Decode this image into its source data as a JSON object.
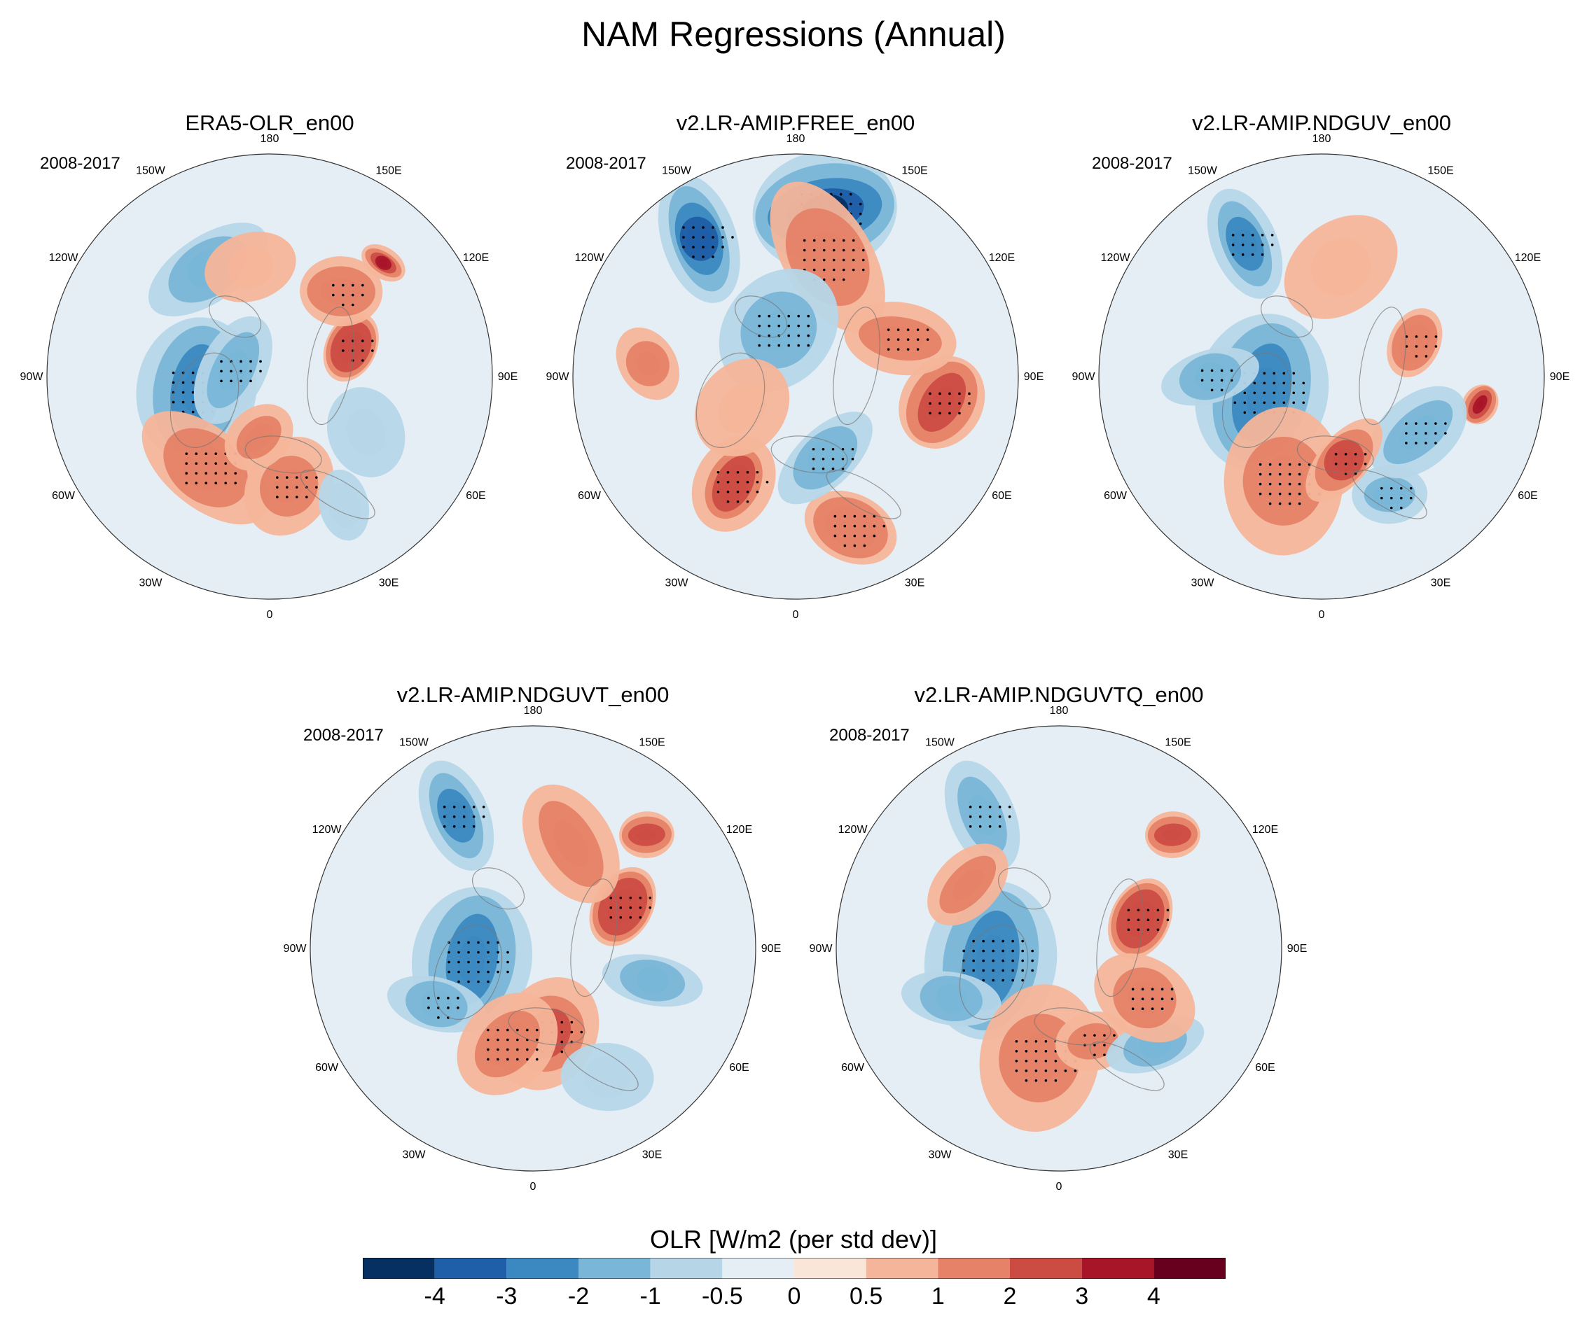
{
  "figure": {
    "title": "NAM Regressions (Annual)"
  },
  "chart_data": {
    "type": "heatmap",
    "projection": "north polar stereographic",
    "variable": "OLR",
    "title": "NAM Regressions (Annual)",
    "colorbar": {
      "title": "OLR [W/m2 (per std dev)]",
      "levels": [
        "-4",
        "-3",
        "-2",
        "-1",
        "-0.5",
        "0",
        "0.5",
        "1",
        "2",
        "3",
        "4"
      ],
      "colors": [
        "#053061",
        "#1f5ea8",
        "#3b89c0",
        "#79b6d8",
        "#b6d6e8",
        "#e4eef4",
        "#fae5d9",
        "#f5b59a",
        "#e58267",
        "#cc4c44",
        "#a81529",
        "#67001f"
      ]
    },
    "longitude_labels": [
      "180",
      "150E",
      "120E",
      "90E",
      "60E",
      "30E",
      "0",
      "30W",
      "60W",
      "90W",
      "120W",
      "150W"
    ],
    "panels": [
      {
        "name": "ERA5-OLR_en00",
        "period": "2008-2017",
        "features": [
          {
            "lon": -80,
            "lat": 60,
            "value": -2.2,
            "size": 1.0,
            "stipple": true
          },
          {
            "lon": -100,
            "lat": 75,
            "value": -1.5,
            "size": 0.7,
            "stipple": true
          },
          {
            "lon": -35,
            "lat": 45,
            "value": 1.8,
            "size": 0.9,
            "stipple": true
          },
          {
            "lon": 10,
            "lat": 45,
            "value": 1.5,
            "size": 0.7,
            "stipple": true
          },
          {
            "lon": -10,
            "lat": 65,
            "value": 1.2,
            "size": 0.6,
            "stipple": false
          },
          {
            "lon": 110,
            "lat": 55,
            "value": 2.0,
            "size": 0.6,
            "stipple": true
          },
          {
            "lon": 140,
            "lat": 45,
            "value": 1.3,
            "size": 0.6,
            "stipple": true
          },
          {
            "lon": 135,
            "lat": 25,
            "value": 3.0,
            "size": 0.3,
            "stipple": false
          },
          {
            "lon": -150,
            "lat": 40,
            "value": -1.2,
            "size": 0.8,
            "stipple": false
          },
          {
            "lon": -170,
            "lat": 45,
            "value": 0.8,
            "size": 0.6,
            "stipple": false
          },
          {
            "lon": 60,
            "lat": 45,
            "value": -0.8,
            "size": 0.7,
            "stipple": false
          },
          {
            "lon": 30,
            "lat": 30,
            "value": -0.7,
            "size": 0.6,
            "stipple": false
          }
        ]
      },
      {
        "name": "v2.LR-AMIP.FREE_en00",
        "period": "2008-2017",
        "features": [
          {
            "lon": 170,
            "lat": 22,
            "value": -4.0,
            "size": 1.0,
            "stipple": true
          },
          {
            "lon": -145,
            "lat": 22,
            "value": -3.0,
            "size": 0.8,
            "stipple": true
          },
          {
            "lon": 165,
            "lat": 40,
            "value": 1.8,
            "size": 1.0,
            "stipple": true
          },
          {
            "lon": -160,
            "lat": 70,
            "value": -1.2,
            "size": 0.9,
            "stipple": true
          },
          {
            "lon": -30,
            "lat": 40,
            "value": 2.5,
            "size": 0.8,
            "stipple": true
          },
          {
            "lon": 20,
            "lat": 25,
            "value": 1.5,
            "size": 0.8,
            "stipple": true
          },
          {
            "lon": 80,
            "lat": 30,
            "value": 2.0,
            "size": 0.7,
            "stipple": true
          },
          {
            "lon": 110,
            "lat": 45,
            "value": 1.0,
            "size": 0.7,
            "stipple": true
          },
          {
            "lon": 20,
            "lat": 55,
            "value": -1.0,
            "size": 0.7,
            "stipple": true
          },
          {
            "lon": -95,
            "lat": 30,
            "value": 1.5,
            "size": 0.5,
            "stipple": false
          },
          {
            "lon": -60,
            "lat": 65,
            "value": 0.6,
            "size": 0.8,
            "stipple": false
          }
        ]
      },
      {
        "name": "v2.LR-AMIP.NDGUV_en00",
        "period": "2008-2017",
        "features": [
          {
            "lon": -75,
            "lat": 65,
            "value": -2.5,
            "size": 1.1,
            "stipple": true
          },
          {
            "lon": -150,
            "lat": 28,
            "value": -2.3,
            "size": 0.7,
            "stipple": true
          },
          {
            "lon": -90,
            "lat": 45,
            "value": -1.8,
            "size": 0.6,
            "stipple": true
          },
          {
            "lon": -20,
            "lat": 45,
            "value": 1.5,
            "size": 1.0,
            "stipple": true
          },
          {
            "lon": 30,
            "lat": 35,
            "value": -1.5,
            "size": 0.6,
            "stipple": true
          },
          {
            "lon": 110,
            "lat": 50,
            "value": 1.8,
            "size": 0.6,
            "stipple": true
          },
          {
            "lon": 80,
            "lat": 25,
            "value": 3.0,
            "size": 0.3,
            "stipple": false
          },
          {
            "lon": 60,
            "lat": 45,
            "value": -1.3,
            "size": 0.7,
            "stipple": true
          },
          {
            "lon": 15,
            "lat": 55,
            "value": 2.0,
            "size": 0.6,
            "stipple": true
          },
          {
            "lon": 170,
            "lat": 45,
            "value": 0.9,
            "size": 0.8,
            "stipple": false
          }
        ]
      },
      {
        "name": "v2.LR-AMIP.NDGUVT_en00",
        "period": "2008-2017",
        "features": [
          {
            "lon": -80,
            "lat": 65,
            "value": -2.2,
            "size": 1.0,
            "stipple": true
          },
          {
            "lon": -150,
            "lat": 28,
            "value": -2.2,
            "size": 0.7,
            "stipple": true
          },
          {
            "lon": -60,
            "lat": 45,
            "value": -1.8,
            "size": 0.6,
            "stipple": true
          },
          {
            "lon": 10,
            "lat": 55,
            "value": 2.0,
            "size": 0.8,
            "stipple": true
          },
          {
            "lon": -15,
            "lat": 50,
            "value": 1.3,
            "size": 0.9,
            "stipple": true
          },
          {
            "lon": 115,
            "lat": 50,
            "value": 2.0,
            "size": 0.7,
            "stipple": true
          },
          {
            "lon": 135,
            "lat": 25,
            "value": 2.8,
            "size": 0.4,
            "stipple": false
          },
          {
            "lon": 160,
            "lat": 45,
            "value": 1.0,
            "size": 0.8,
            "stipple": false
          },
          {
            "lon": 75,
            "lat": 40,
            "value": -1.0,
            "size": 0.6,
            "stipple": false
          },
          {
            "lon": 30,
            "lat": 30,
            "value": -0.8,
            "size": 0.6,
            "stipple": false
          }
        ]
      },
      {
        "name": "v2.LR-AMIP.NDGUVTQ_en00",
        "period": "2008-2017",
        "features": [
          {
            "lon": -80,
            "lat": 62,
            "value": -2.4,
            "size": 1.1,
            "stipple": true
          },
          {
            "lon": -150,
            "lat": 28,
            "value": -1.9,
            "size": 0.7,
            "stipple": true
          },
          {
            "lon": -65,
            "lat": 42,
            "value": -1.3,
            "size": 0.6,
            "stipple": false
          },
          {
            "lon": -10,
            "lat": 45,
            "value": 1.6,
            "size": 1.0,
            "stipple": true
          },
          {
            "lon": 20,
            "lat": 50,
            "value": 1.3,
            "size": 0.6,
            "stipple": true
          },
          {
            "lon": 110,
            "lat": 55,
            "value": 2.0,
            "size": 0.7,
            "stipple": true
          },
          {
            "lon": 135,
            "lat": 25,
            "value": 2.8,
            "size": 0.4,
            "stipple": false
          },
          {
            "lon": -125,
            "lat": 45,
            "value": 1.5,
            "size": 0.6,
            "stipple": false
          },
          {
            "lon": 45,
            "lat": 35,
            "value": -1.2,
            "size": 0.6,
            "stipple": false
          },
          {
            "lon": 60,
            "lat": 50,
            "value": 1.0,
            "size": 0.7,
            "stipple": true
          }
        ]
      }
    ]
  }
}
